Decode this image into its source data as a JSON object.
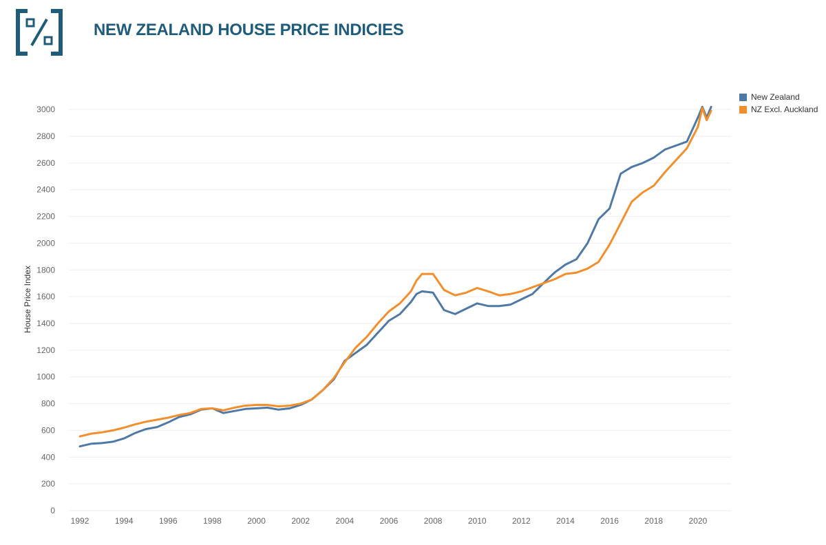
{
  "header": {
    "title": "NEW ZEALAND HOUSE PRICE INDICIES",
    "logo_icon": "percent-box-icon"
  },
  "colors": {
    "brand": "#1f5b7a",
    "nz": "#4e79a7",
    "nz_excl_akl": "#f28e2b",
    "grid": "#eeeeee"
  },
  "chart_data": {
    "type": "line",
    "title": "NEW ZEALAND HOUSE PRICE INDICIES",
    "xlabel": "",
    "ylabel": "House Price Index",
    "xlim": [
      1991.5,
      2021.5
    ],
    "ylim": [
      0,
      3150
    ],
    "x_ticks": [
      1992,
      1994,
      1996,
      1998,
      2000,
      2002,
      2004,
      2006,
      2008,
      2010,
      2012,
      2014,
      2016,
      2018,
      2020
    ],
    "y_ticks": [
      0,
      200,
      400,
      600,
      800,
      1000,
      1200,
      1400,
      1600,
      1800,
      2000,
      2200,
      2400,
      2600,
      2800,
      3000
    ],
    "grid": true,
    "legend_position": "top-right",
    "series": [
      {
        "name": "New Zealand",
        "color": "#4e79a7",
        "x": [
          1992.0,
          1992.5,
          1993.0,
          1993.5,
          1994.0,
          1994.5,
          1995.0,
          1995.5,
          1996.0,
          1996.5,
          1997.0,
          1997.5,
          1998.0,
          1998.5,
          1999.0,
          1999.5,
          2000.0,
          2000.5,
          2001.0,
          2001.5,
          2002.0,
          2002.5,
          2003.0,
          2003.5,
          2004.0,
          2004.5,
          2005.0,
          2005.5,
          2006.0,
          2006.5,
          2007.0,
          2007.25,
          2007.5,
          2008.0,
          2008.5,
          2009.0,
          2009.5,
          2010.0,
          2010.5,
          2011.0,
          2011.5,
          2012.0,
          2012.5,
          2013.0,
          2013.5,
          2014.0,
          2014.5,
          2015.0,
          2015.5,
          2016.0,
          2016.5,
          2017.0,
          2017.5,
          2018.0,
          2018.5,
          2019.0,
          2019.5,
          2020.0,
          2020.2,
          2020.4,
          2020.6
        ],
        "values": [
          480,
          500,
          505,
          515,
          540,
          580,
          610,
          625,
          660,
          700,
          720,
          755,
          765,
          730,
          745,
          760,
          765,
          770,
          755,
          765,
          790,
          830,
          900,
          980,
          1120,
          1180,
          1240,
          1330,
          1420,
          1470,
          1560,
          1620,
          1640,
          1630,
          1500,
          1470,
          1510,
          1550,
          1530,
          1530,
          1540,
          1580,
          1620,
          1700,
          1780,
          1840,
          1880,
          2000,
          2180,
          2260,
          2520,
          2570,
          2600,
          2640,
          2700,
          2730,
          2760,
          2940,
          3020,
          2940,
          3020
        ]
      },
      {
        "name": "NZ Excl. Auckland",
        "color": "#f28e2b",
        "x": [
          1992.0,
          1992.5,
          1993.0,
          1993.5,
          1994.0,
          1994.5,
          1995.0,
          1995.5,
          1996.0,
          1996.5,
          1997.0,
          1997.5,
          1998.0,
          1998.5,
          1999.0,
          1999.5,
          2000.0,
          2000.5,
          2001.0,
          2001.5,
          2002.0,
          2002.5,
          2003.0,
          2003.5,
          2004.0,
          2004.5,
          2005.0,
          2005.5,
          2006.0,
          2006.5,
          2007.0,
          2007.25,
          2007.5,
          2008.0,
          2008.5,
          2009.0,
          2009.5,
          2010.0,
          2010.5,
          2011.0,
          2011.5,
          2012.0,
          2012.5,
          2013.0,
          2013.5,
          2014.0,
          2014.5,
          2015.0,
          2015.5,
          2016.0,
          2016.5,
          2017.0,
          2017.5,
          2018.0,
          2018.5,
          2019.0,
          2019.5,
          2020.0,
          2020.2,
          2020.4,
          2020.6
        ],
        "values": [
          555,
          575,
          585,
          600,
          620,
          645,
          665,
          680,
          695,
          715,
          730,
          760,
          765,
          750,
          770,
          785,
          790,
          790,
          780,
          785,
          800,
          830,
          900,
          990,
          1110,
          1220,
          1300,
          1400,
          1490,
          1550,
          1640,
          1720,
          1770,
          1770,
          1650,
          1610,
          1630,
          1665,
          1640,
          1610,
          1620,
          1640,
          1670,
          1700,
          1730,
          1770,
          1780,
          1810,
          1860,
          1990,
          2150,
          2310,
          2380,
          2430,
          2530,
          2620,
          2710,
          2870,
          3010,
          2920,
          2990
        ]
      }
    ]
  }
}
